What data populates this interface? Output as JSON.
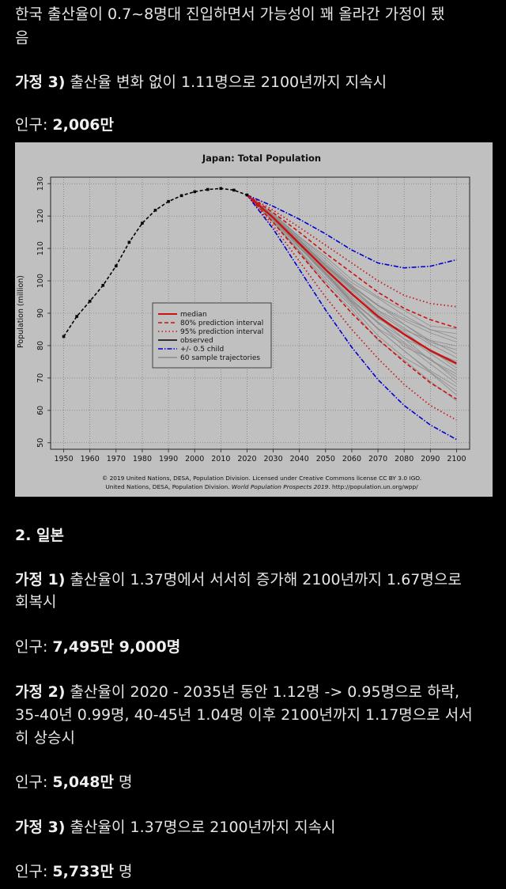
{
  "intro": {
    "line1": "한국 출산율이 0.7~8명대 진입하면서 가능성이 꽤 올라간 가정이 됐",
    "line2": "음"
  },
  "korea_a3": {
    "label": "가정 3)",
    "text": " 출산율 변화 없이 1.11명으로 2100년까지 지속시",
    "pop_label": "인구: ",
    "pop_value": "2,006만"
  },
  "japan": {
    "heading": "2. 일본",
    "a1_label": "가정 1)",
    "a1_text_1": " 출산율이 1.37명에서 서서히 증가해 2100년까지 1.67명으로",
    "a1_text_2": "회복시",
    "a1_pop_label": "인구: ",
    "a1_pop_value": "7,495만 9,000명",
    "a2_label": "가정 2)",
    "a2_text_1": " 출산율이 2020 - 2035년 동안 1.12명 -> 0.95명으로 하락,",
    "a2_text_2": "35-40년 0.99명, 40-45년 1.04명 이후 2100년까지 1.17명으로 서서",
    "a2_text_3": "히 상승시",
    "a2_pop_label": "인구: ",
    "a2_pop_value": "5,048만",
    "a2_pop_unit": " 명",
    "a3_label": "가정 3)",
    "a3_text": " 출산율이 1.37명으로 2100년까지 지속시",
    "a3_pop_label": "인구: ",
    "a3_pop_value": "5,733만",
    "a3_pop_unit": " 명"
  },
  "chart_data": {
    "type": "line",
    "title": "Japan: Total Population",
    "ylabel": "Population (million)",
    "xlabel": "",
    "xlim": [
      1950,
      2100
    ],
    "ylim": [
      50,
      130
    ],
    "xticks": [
      1950,
      1960,
      1970,
      1980,
      1990,
      2000,
      2010,
      2020,
      2030,
      2040,
      2050,
      2060,
      2070,
      2080,
      2090,
      2100
    ],
    "yticks": [
      50,
      60,
      70,
      80,
      90,
      100,
      110,
      120,
      130
    ],
    "grid": true,
    "legend_position": "center-left",
    "legend": [
      "median",
      "80% prediction interval",
      "95% prediction interval",
      "observed",
      "+/- 0.5 child",
      "60 sample trajectories"
    ],
    "credit_line1": "© 2019 United Nations, DESA, Population Division. Licensed under Creative Commons license CC BY 3.0 IGO.",
    "credit_line2_a": "United Nations, DESA, Population Division. ",
    "credit_line2_b": "World Population Prospects 2019",
    "credit_line2_c": ". http://population.un.org/wpp/",
    "colors": {
      "median": "#cc1111",
      "pi80": "#cc1111",
      "pi95": "#cc1111",
      "observed": "#000000",
      "half_child": "#0000cc",
      "samples": "#8a8a8a"
    },
    "series": [
      {
        "name": "observed",
        "x": [
          1950,
          1955,
          1960,
          1965,
          1970,
          1975,
          1980,
          1985,
          1990,
          1995,
          2000,
          2005,
          2010,
          2015,
          2020
        ],
        "values": [
          82.8,
          89.0,
          93.7,
          98.6,
          104.6,
          111.9,
          117.8,
          121.8,
          124.5,
          126.3,
          127.5,
          128.2,
          128.5,
          128.0,
          126.5
        ]
      },
      {
        "name": "median",
        "x": [
          2020,
          2030,
          2040,
          2050,
          2060,
          2070,
          2080,
          2090,
          2100
        ],
        "values": [
          126.5,
          119.5,
          111.5,
          103.5,
          96.0,
          89.0,
          83.5,
          78.5,
          74.5
        ]
      },
      {
        "name": "80% prediction interval upper",
        "x": [
          2020,
          2030,
          2040,
          2050,
          2060,
          2070,
          2080,
          2090,
          2100
        ],
        "values": [
          126.5,
          121.0,
          115.0,
          108.5,
          102.5,
          96.5,
          91.5,
          88.0,
          85.5
        ]
      },
      {
        "name": "80% prediction interval lower",
        "x": [
          2020,
          2030,
          2040,
          2050,
          2060,
          2070,
          2080,
          2090,
          2100
        ],
        "values": [
          126.5,
          118.0,
          108.5,
          99.0,
          90.0,
          82.0,
          75.0,
          68.5,
          63.5
        ]
      },
      {
        "name": "95% prediction interval upper",
        "x": [
          2020,
          2030,
          2040,
          2050,
          2060,
          2070,
          2080,
          2090,
          2100
        ],
        "values": [
          126.5,
          121.8,
          116.5,
          111.0,
          105.5,
          100.0,
          95.5,
          93.0,
          92.0
        ]
      },
      {
        "name": "95% prediction interval lower",
        "x": [
          2020,
          2030,
          2040,
          2050,
          2060,
          2070,
          2080,
          2090,
          2100
        ],
        "values": [
          126.5,
          117.0,
          106.0,
          95.0,
          85.0,
          76.0,
          68.0,
          61.5,
          57.0
        ]
      },
      {
        "name": "+/- 0.5 child upper",
        "x": [
          2020,
          2030,
          2040,
          2050,
          2060,
          2070,
          2080,
          2090,
          2100
        ],
        "values": [
          126.5,
          123.0,
          119.0,
          114.5,
          109.5,
          105.5,
          104.0,
          104.5,
          106.5
        ]
      },
      {
        "name": "+/- 0.5 child lower",
        "x": [
          2020,
          2030,
          2040,
          2050,
          2060,
          2070,
          2080,
          2090,
          2100
        ],
        "values": [
          126.5,
          116.0,
          103.5,
          91.0,
          79.5,
          69.5,
          61.5,
          55.5,
          51.0
        ]
      }
    ],
    "sample_trajectory_spread": [
      -11,
      -9,
      -7.5,
      -6,
      -5,
      -4,
      -3,
      -2.2,
      -1.5,
      -0.8,
      0,
      0.8,
      1.6,
      2.5,
      3.5,
      4.5,
      5.5,
      6.5,
      8,
      9.5
    ]
  }
}
